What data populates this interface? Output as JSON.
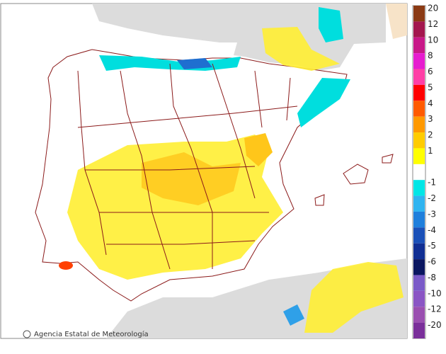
{
  "credit": "Agencia Estatal de Meteorología",
  "legend": {
    "items": [
      {
        "label": "20",
        "color": "#8b3a14"
      },
      {
        "label": "12",
        "color": "#a3174e"
      },
      {
        "label": "10",
        "color": "#c81888"
      },
      {
        "label": "8",
        "color": "#e61ccf"
      },
      {
        "label": "6",
        "color": "#ff3fa6"
      },
      {
        "label": "5",
        "color": "#ff0000"
      },
      {
        "label": "4",
        "color": "#ff5a00"
      },
      {
        "label": "3",
        "color": "#ff9900"
      },
      {
        "label": "2",
        "color": "#ffcc00"
      },
      {
        "label": "1",
        "color": "#ffff00"
      },
      {
        "label": "-1",
        "color": "#00e6e6"
      },
      {
        "label": "-2",
        "color": "#2fb4f0"
      },
      {
        "label": "-3",
        "color": "#1f7fdc"
      },
      {
        "label": "-4",
        "color": "#1a50b8"
      },
      {
        "label": "-5",
        "color": "#102e93"
      },
      {
        "label": "-6",
        "color": "#0a1660"
      },
      {
        "label": "-8",
        "color": "#7a5ac8"
      },
      {
        "label": "-10",
        "color": "#8a55c4"
      },
      {
        "label": "-12",
        "color": "#9a4fb0"
      },
      {
        "label": "-20",
        "color": "#7a2f9a"
      }
    ]
  }
}
